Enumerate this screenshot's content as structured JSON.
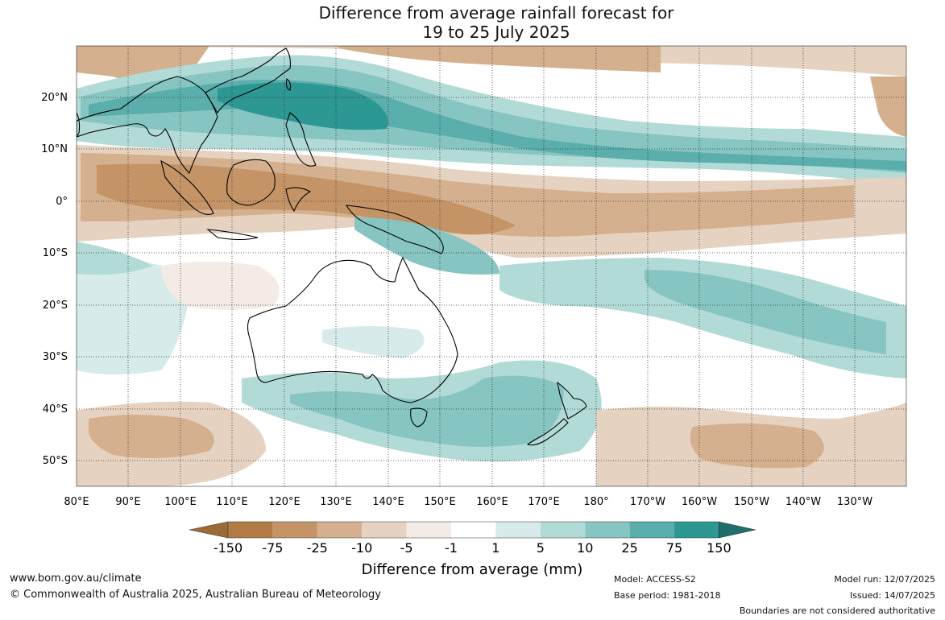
{
  "title_line1": "Difference from average rainfall forecast for",
  "title_line2": "19 to 25 July 2025",
  "lat_labels": [
    "20°N",
    "10°N",
    "0°",
    "10°S",
    "20°S",
    "30°S",
    "40°S",
    "50°S"
  ],
  "lon_labels": [
    "80°E",
    "90°E",
    "100°E",
    "110°E",
    "120°E",
    "130°E",
    "140°E",
    "150°E",
    "160°E",
    "170°E",
    "180°",
    "170°W",
    "160°W",
    "150°W",
    "140°W",
    "130°W"
  ],
  "colorbar": {
    "title": "Difference from average (mm)",
    "tick_labels": [
      "-150",
      "-75",
      "-25",
      "-10",
      "-5",
      "-1",
      "1",
      "5",
      "10",
      "25",
      "75",
      "150"
    ],
    "colors": [
      "#9c6a35",
      "#b17c43",
      "#c49467",
      "#d4b08e",
      "#e6d2c0",
      "#f4ebe6",
      "#ffffff",
      "#d6ebea",
      "#b2dbd8",
      "#87c5c2",
      "#5aaeab",
      "#2d9793",
      "#1f6e6c"
    ]
  },
  "footer": {
    "website": "www.bom.gov.au/climate",
    "copyright": "© Commonwealth of Australia 2025, Australian Bureau of Meteorology",
    "model": "Model: ACCESS-S2",
    "base_period": "Base period: 1981-2018",
    "model_run": "Model run: 12/07/2025",
    "issued": "Issued: 14/07/2025",
    "disclaimer": "Boundaries are not considered authoritative"
  }
}
